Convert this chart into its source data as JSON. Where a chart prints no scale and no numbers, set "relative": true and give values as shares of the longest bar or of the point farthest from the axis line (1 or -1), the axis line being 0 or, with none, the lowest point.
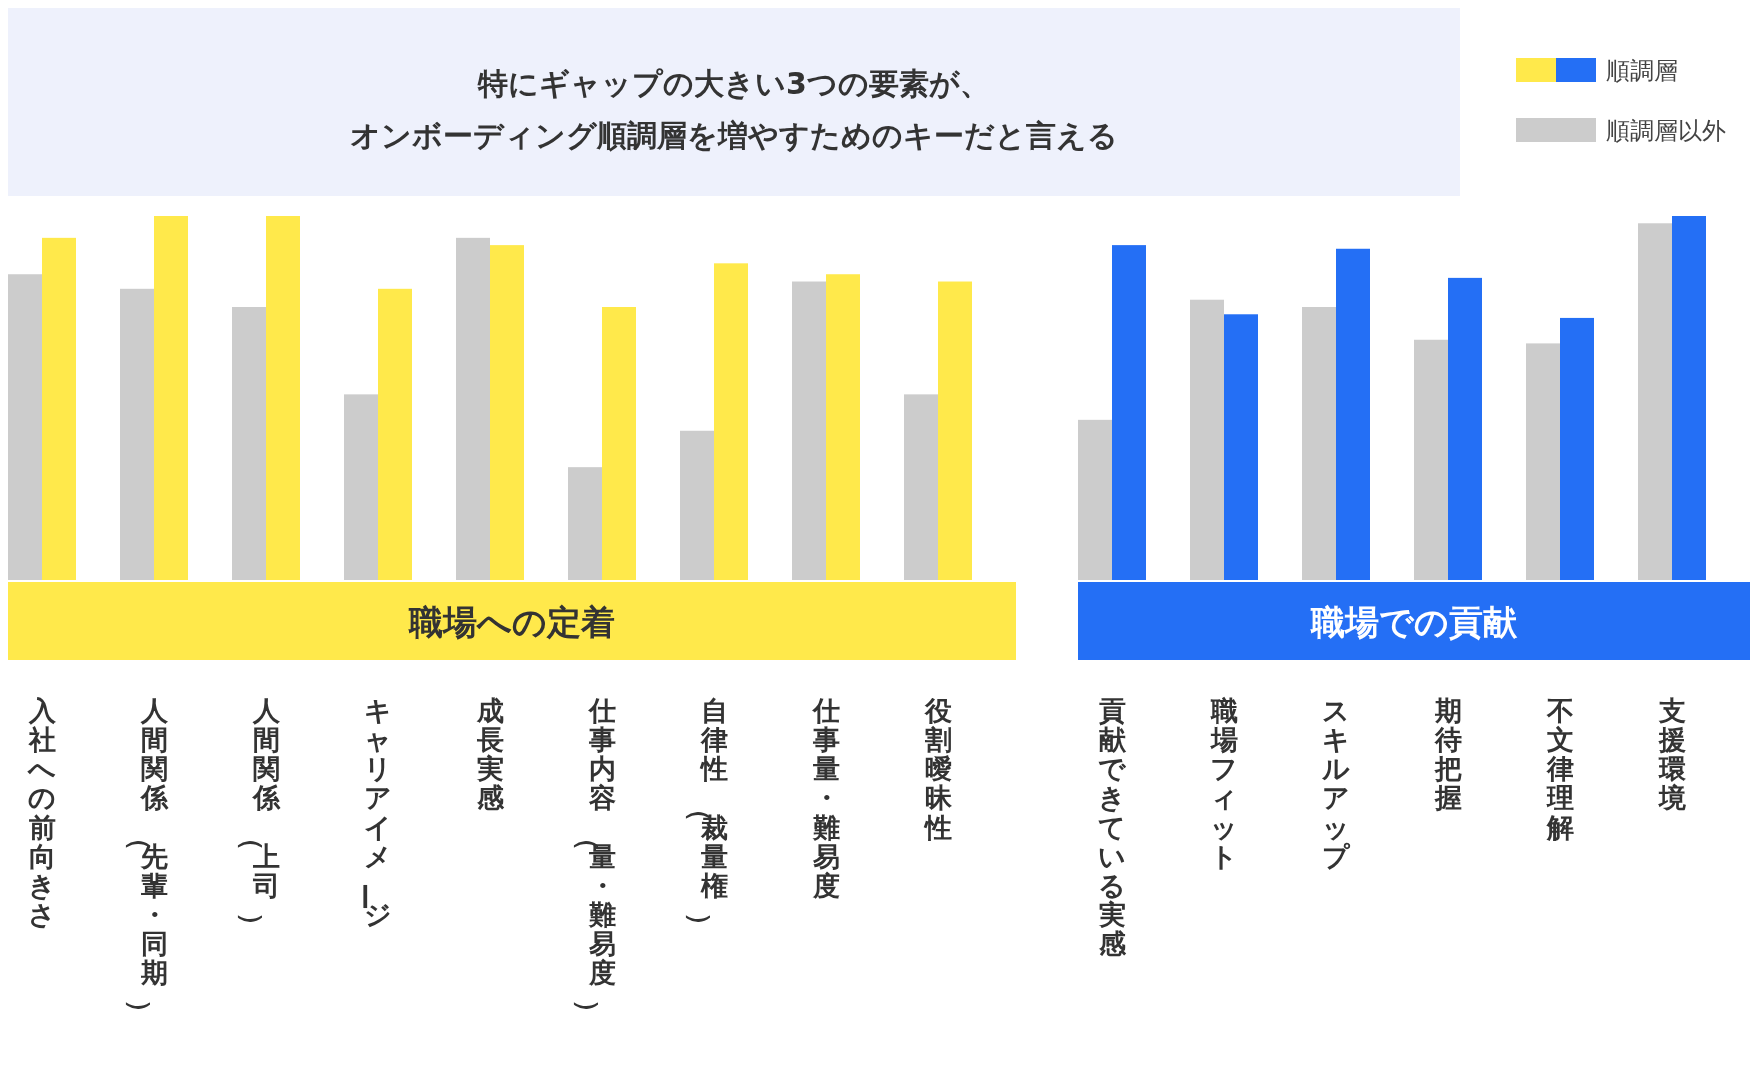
{
  "chart_data": {
    "type": "bar",
    "relative": true,
    "title": "特にギャップの大きい3つの要素が、",
    "subtitle": "オンボーディング順調層を増やすためのキーだと言える",
    "categories": [
      "入社への前向きさ",
      "人間関係（先輩・同期）",
      "人間関係（上司）",
      "キャリアイメージ",
      "成長実感",
      "仕事内容（量・難易度）",
      "自律性（裁量権）",
      "仕事量・難易度",
      "役割曖昧性",
      "貢献できている実感",
      "職場フィット",
      "スキルアップ",
      "期待把握",
      "不文律理解",
      "支援環境"
    ],
    "series": [
      {
        "name": "順調層以外",
        "color": "#cccccc",
        "values": [
          0.84,
          0.8,
          0.75,
          0.51,
          0.94,
          0.31,
          0.41,
          0.82,
          0.51,
          0.44,
          0.77,
          0.75,
          0.66,
          0.65,
          0.98
        ]
      },
      {
        "name": "順調層",
        "colors": [
          "#ffe94b",
          "#ffe94b",
          "#ffe94b",
          "#ffe94b",
          "#ffe94b",
          "#ffe94b",
          "#ffe94b",
          "#ffe94b",
          "#ffe94b",
          "#246ff5",
          "#246ff5",
          "#246ff5",
          "#246ff5",
          "#246ff5",
          "#246ff5"
        ],
        "values": [
          0.94,
          1.0,
          1.0,
          0.8,
          0.92,
          0.75,
          0.87,
          0.84,
          0.82,
          0.92,
          0.73,
          0.91,
          0.83,
          0.72,
          1.0
        ]
      }
    ],
    "annotations": [
      "職場への定着",
      "職場での貢献"
    ],
    "legend": "top right",
    "grid": false
  }
}
